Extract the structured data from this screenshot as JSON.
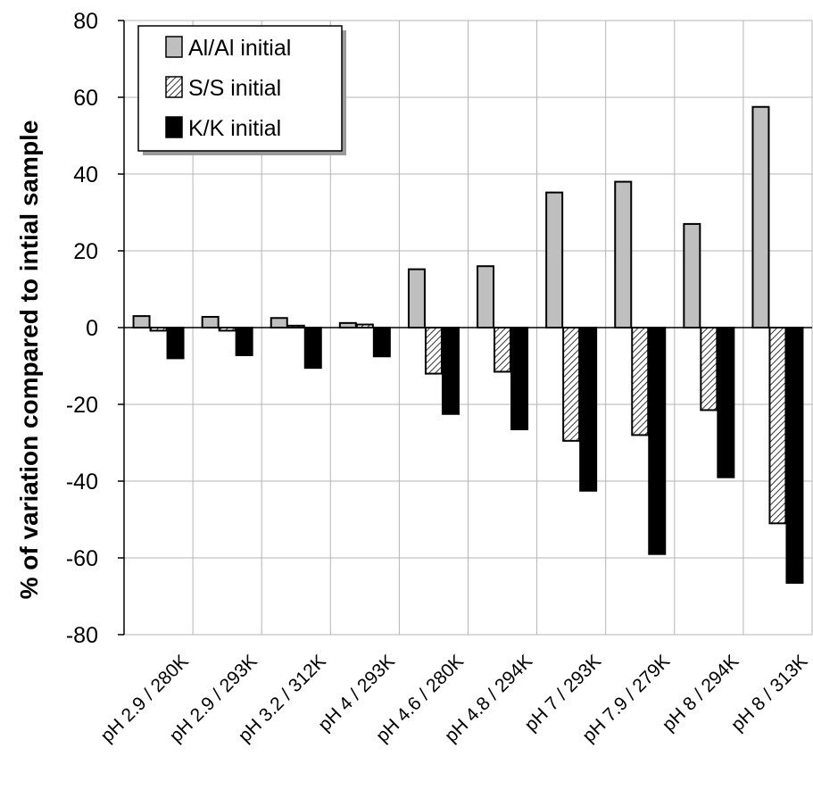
{
  "chart_data": {
    "type": "bar",
    "title": "",
    "xlabel": "",
    "ylabel": "% of variation compared to intial sample",
    "ylim": [
      -80,
      80
    ],
    "yticks": [
      80,
      60,
      40,
      20,
      0,
      -20,
      -40,
      -60,
      -80
    ],
    "grid": true,
    "legend_position": "top-left",
    "categories": [
      "pH 2.9 / 280K",
      "pH 2.9 / 293K",
      "pH 3.2 / 312K",
      "pH 4 / 293K",
      "pH 4.6 / 280K",
      "pH 4.8 / 294K",
      "pH 7 / 293K",
      "pH 7.9 / 279K",
      "pH 8 / 294K",
      "pH 8 / 313K"
    ],
    "series": [
      {
        "name": "Al/Al initial",
        "fill": "#bfbfbf",
        "pattern": "solid-gray",
        "values": [
          3,
          2.8,
          2.5,
          1.2,
          15.2,
          16,
          35.2,
          38,
          27,
          57.5
        ]
      },
      {
        "name": "S/S initial",
        "fill": "#ffffff",
        "pattern": "hatch",
        "values": [
          -0.8,
          -0.8,
          0.5,
          0.8,
          -12,
          -11.5,
          -29.5,
          -28,
          -21.5,
          -51
        ]
      },
      {
        "name": "K/K initial",
        "fill": "#000000",
        "pattern": "solid-black",
        "values": [
          -8,
          -7.2,
          -10.5,
          -7.5,
          -22.5,
          -26.5,
          -42.5,
          -59,
          -39,
          -66.5
        ]
      }
    ]
  }
}
